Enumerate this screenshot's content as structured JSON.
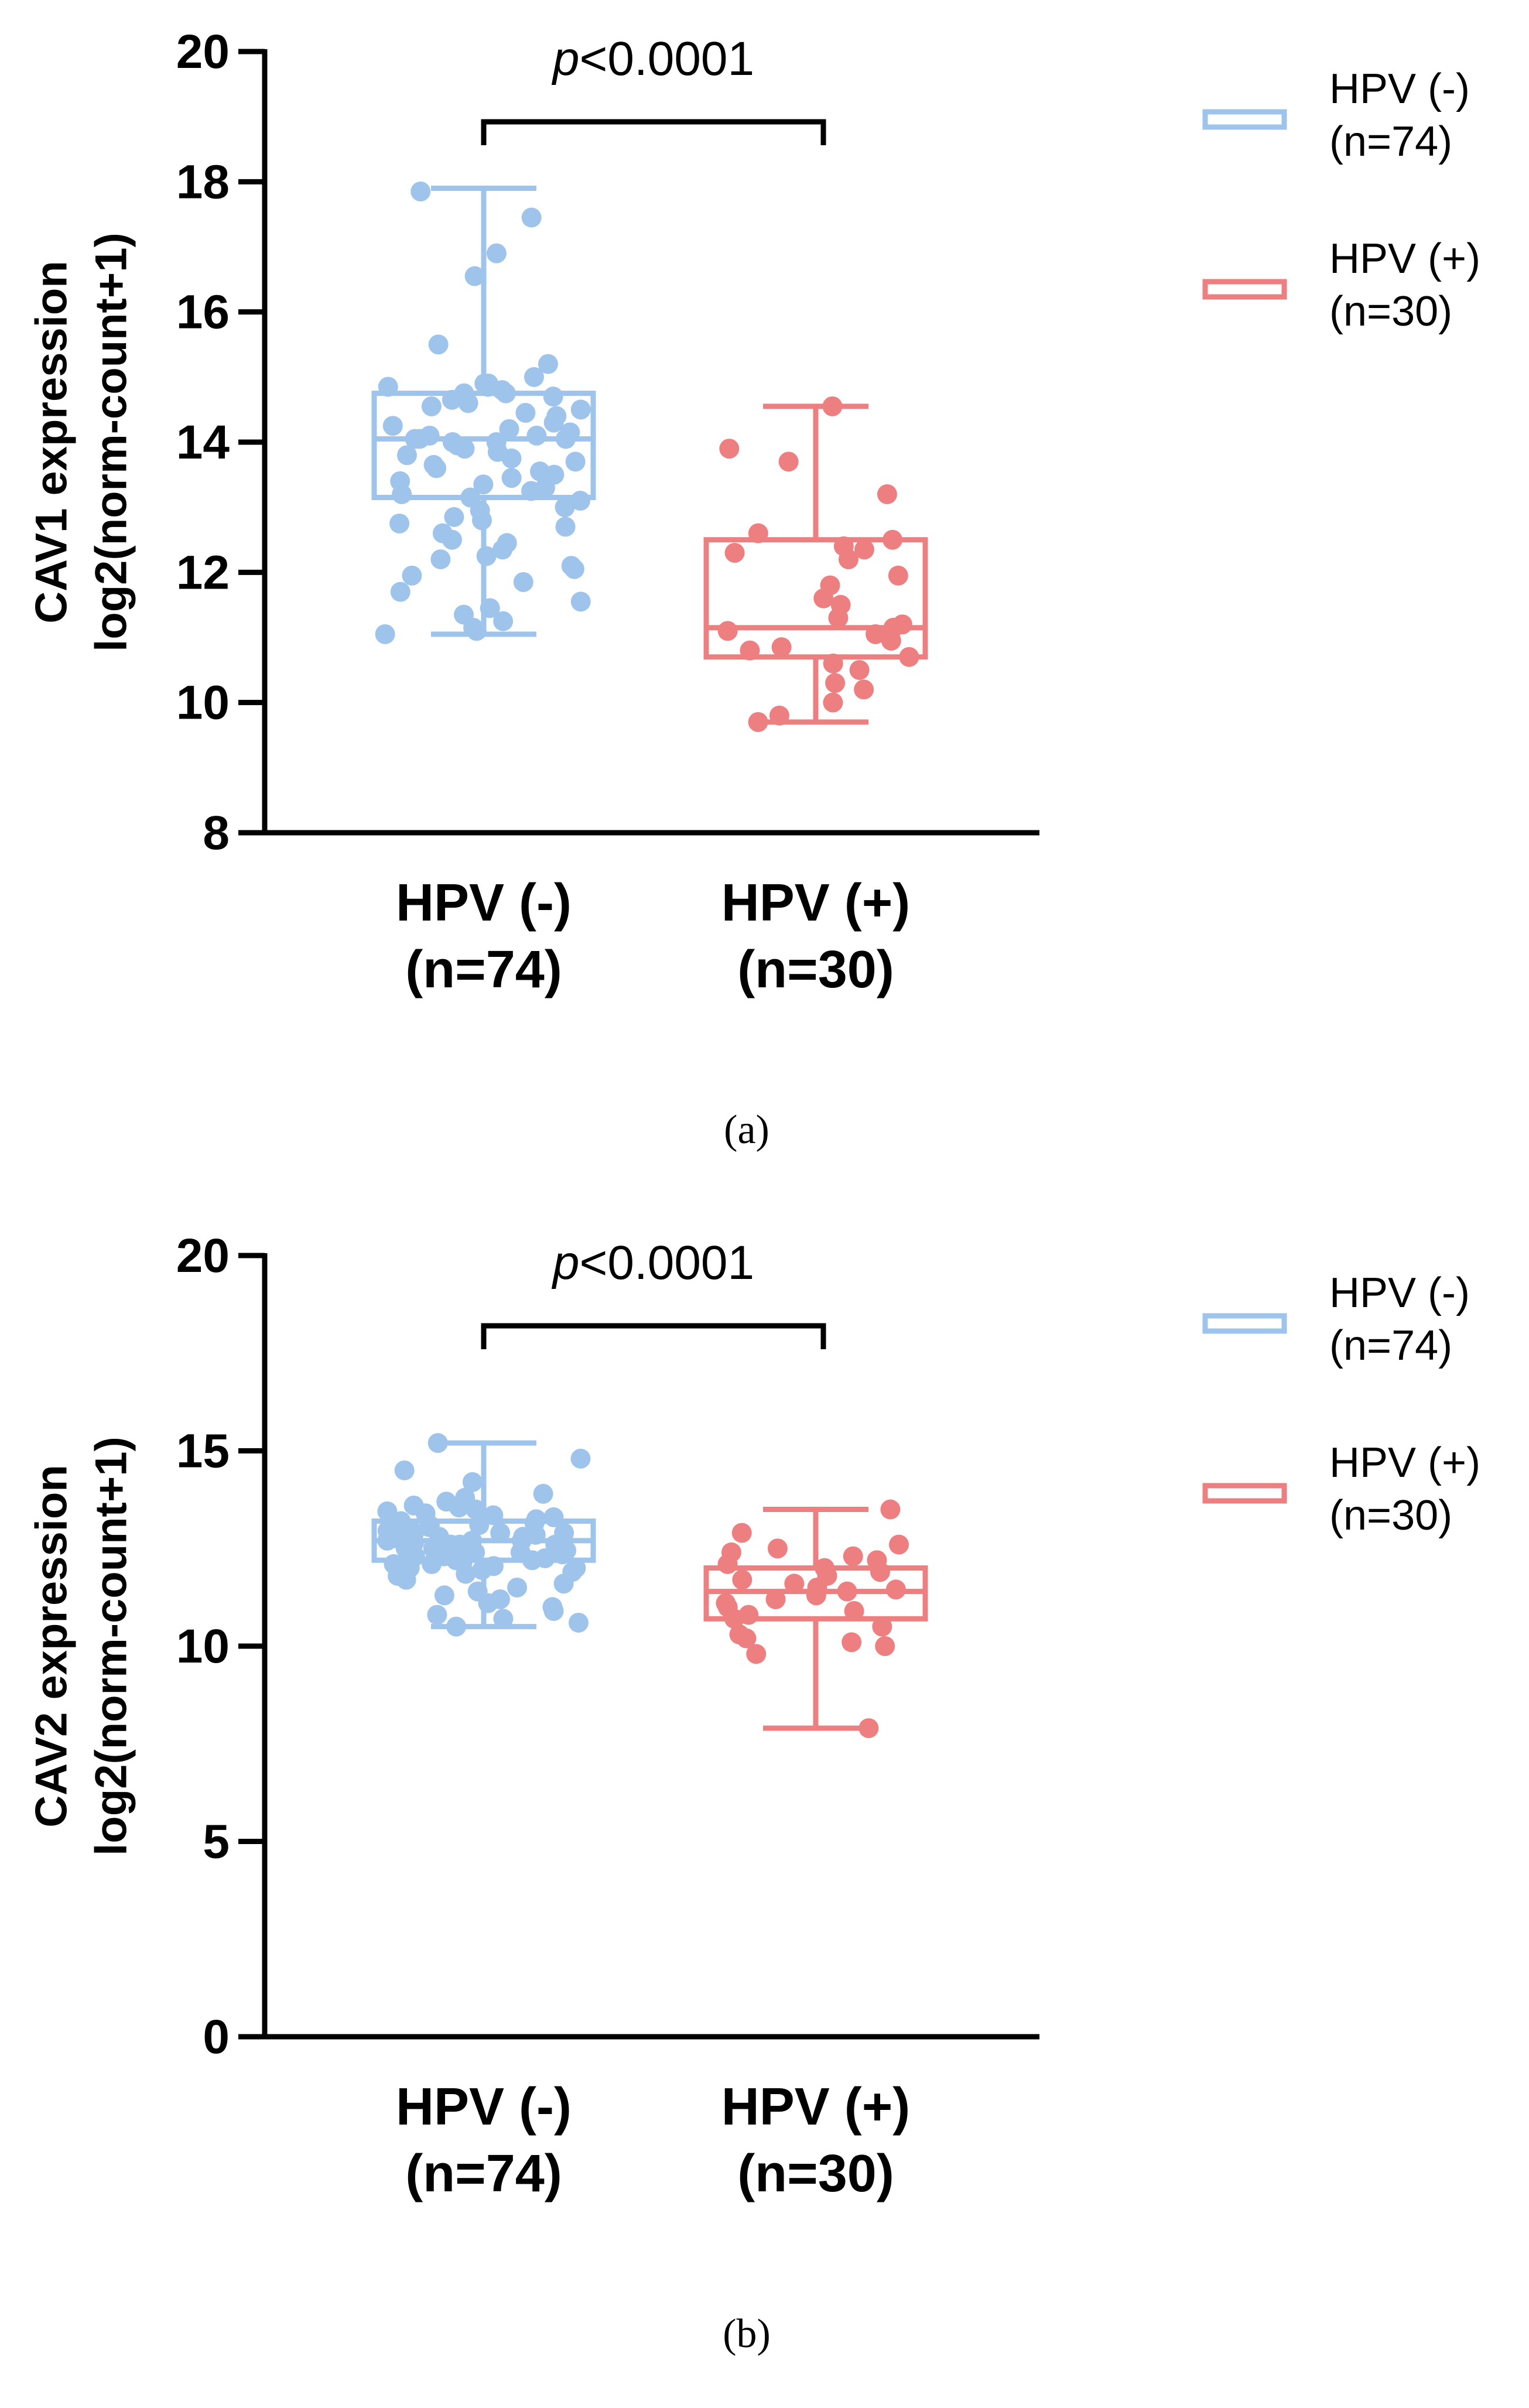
{
  "chart_data": [
    {
      "type": "box",
      "panel_caption": "(a)",
      "ylabel_line1": "CAV1 expression",
      "ylabel_line2": "log2(norm-count+1)",
      "ylim": [
        8,
        20
      ],
      "yticks": [
        "8",
        "10",
        "12",
        "14",
        "16",
        "18",
        "20"
      ],
      "p_text": "p<0.0001",
      "p_italic": "p",
      "p_rest": "<0.0001",
      "groups": [
        {
          "name_line1": "HPV (-)",
          "name_line2": "(n=74)",
          "color": "#9ec4ec",
          "min": 11.05,
          "q1": 13.15,
          "median": 14.05,
          "q3": 14.75,
          "max": 17.9,
          "points": [
            17.85,
            17.45,
            16.9,
            16.55,
            15.5,
            15.2,
            15.0,
            14.9,
            14.9,
            14.85,
            14.85,
            14.8,
            14.75,
            14.75,
            14.7,
            14.65,
            14.6,
            14.55,
            14.5,
            14.45,
            14.4,
            14.3,
            14.25,
            14.2,
            14.15,
            14.1,
            14.1,
            14.05,
            14.05,
            14.05,
            14.0,
            14.0,
            13.95,
            13.9,
            13.85,
            13.8,
            13.75,
            13.7,
            13.65,
            13.6,
            13.55,
            13.5,
            13.45,
            13.4,
            13.35,
            13.3,
            13.25,
            13.2,
            13.15,
            13.1,
            13.0,
            12.95,
            12.85,
            12.8,
            12.75,
            12.7,
            12.6,
            12.5,
            12.45,
            12.35,
            12.25,
            12.2,
            12.1,
            12.05,
            11.95,
            11.85,
            11.7,
            11.55,
            11.45,
            11.35,
            11.25,
            11.15,
            11.1,
            11.05
          ]
        },
        {
          "name_line1": "HPV (+)",
          "name_line2": "(n=30)",
          "color": "#ee7f80",
          "min": 9.7,
          "q1": 10.7,
          "median": 11.15,
          "q3": 12.5,
          "max": 14.55,
          "points": [
            14.55,
            13.9,
            13.7,
            13.2,
            12.6,
            12.5,
            12.4,
            12.35,
            12.3,
            12.2,
            11.95,
            11.8,
            11.6,
            11.5,
            11.3,
            11.2,
            11.15,
            11.1,
            11.05,
            10.95,
            10.85,
            10.8,
            10.7,
            10.6,
            10.5,
            10.3,
            10.2,
            10.0,
            9.8,
            9.7
          ]
        }
      ],
      "legend": [
        {
          "line1": "HPV (-)",
          "line2": "(n=74)",
          "color": "#9ec4ec"
        },
        {
          "line1": "HPV (+)",
          "line2": "(n=30)",
          "color": "#ee7f80"
        }
      ]
    },
    {
      "type": "box",
      "panel_caption": "(b)",
      "ylabel_line1": "CAV2 expression",
      "ylabel_line2": "log2(norm-count+1)",
      "ylim": [
        0,
        20
      ],
      "yticks": [
        "0",
        "5",
        "10",
        "15",
        "20"
      ],
      "p_text": "p<0.0001",
      "p_italic": "p",
      "p_rest": "<0.0001",
      "groups": [
        {
          "name_line1": "HPV (-)",
          "name_line2": "(n=74)",
          "color": "#9ec4ec",
          "min": 10.5,
          "q1": 12.2,
          "median": 12.7,
          "q3": 13.2,
          "max": 15.2,
          "points": [
            15.2,
            14.8,
            14.5,
            14.2,
            13.9,
            13.8,
            13.7,
            13.6,
            13.55,
            13.5,
            13.45,
            13.4,
            13.35,
            13.3,
            13.25,
            13.2,
            13.2,
            13.15,
            13.1,
            13.05,
            13.0,
            13.0,
            12.95,
            12.9,
            12.9,
            12.85,
            12.8,
            12.8,
            12.75,
            12.7,
            12.7,
            12.7,
            12.65,
            12.6,
            12.6,
            12.55,
            12.5,
            12.5,
            12.45,
            12.4,
            12.4,
            12.35,
            12.3,
            12.3,
            12.25,
            12.2,
            12.2,
            12.15,
            12.1,
            12.1,
            12.05,
            12.0,
            12.0,
            11.95,
            11.9,
            11.85,
            11.8,
            11.7,
            11.6,
            11.5,
            11.4,
            11.3,
            11.2,
            11.1,
            11.0,
            10.9,
            10.8,
            10.7,
            10.6,
            10.5,
            12.6,
            12.9,
            13.1,
            12.4
          ]
        },
        {
          "name_line1": "HPV (+)",
          "name_line2": "(n=30)",
          "color": "#ee7f80",
          "min": 7.9,
          "q1": 10.7,
          "median": 11.4,
          "q3": 12.0,
          "max": 13.5,
          "points": [
            13.5,
            12.9,
            12.6,
            12.5,
            12.4,
            12.3,
            12.2,
            12.1,
            12.0,
            11.9,
            11.8,
            11.7,
            11.6,
            11.5,
            11.45,
            11.4,
            11.3,
            11.2,
            11.1,
            11.0,
            10.9,
            10.8,
            10.7,
            10.5,
            10.3,
            10.2,
            10.1,
            10.0,
            9.8,
            7.9
          ]
        }
      ],
      "legend": [
        {
          "line1": "HPV (-)",
          "line2": "(n=74)",
          "color": "#9ec4ec"
        },
        {
          "line1": "HPV (+)",
          "line2": "(n=30)",
          "color": "#ee7f80"
        }
      ]
    }
  ]
}
